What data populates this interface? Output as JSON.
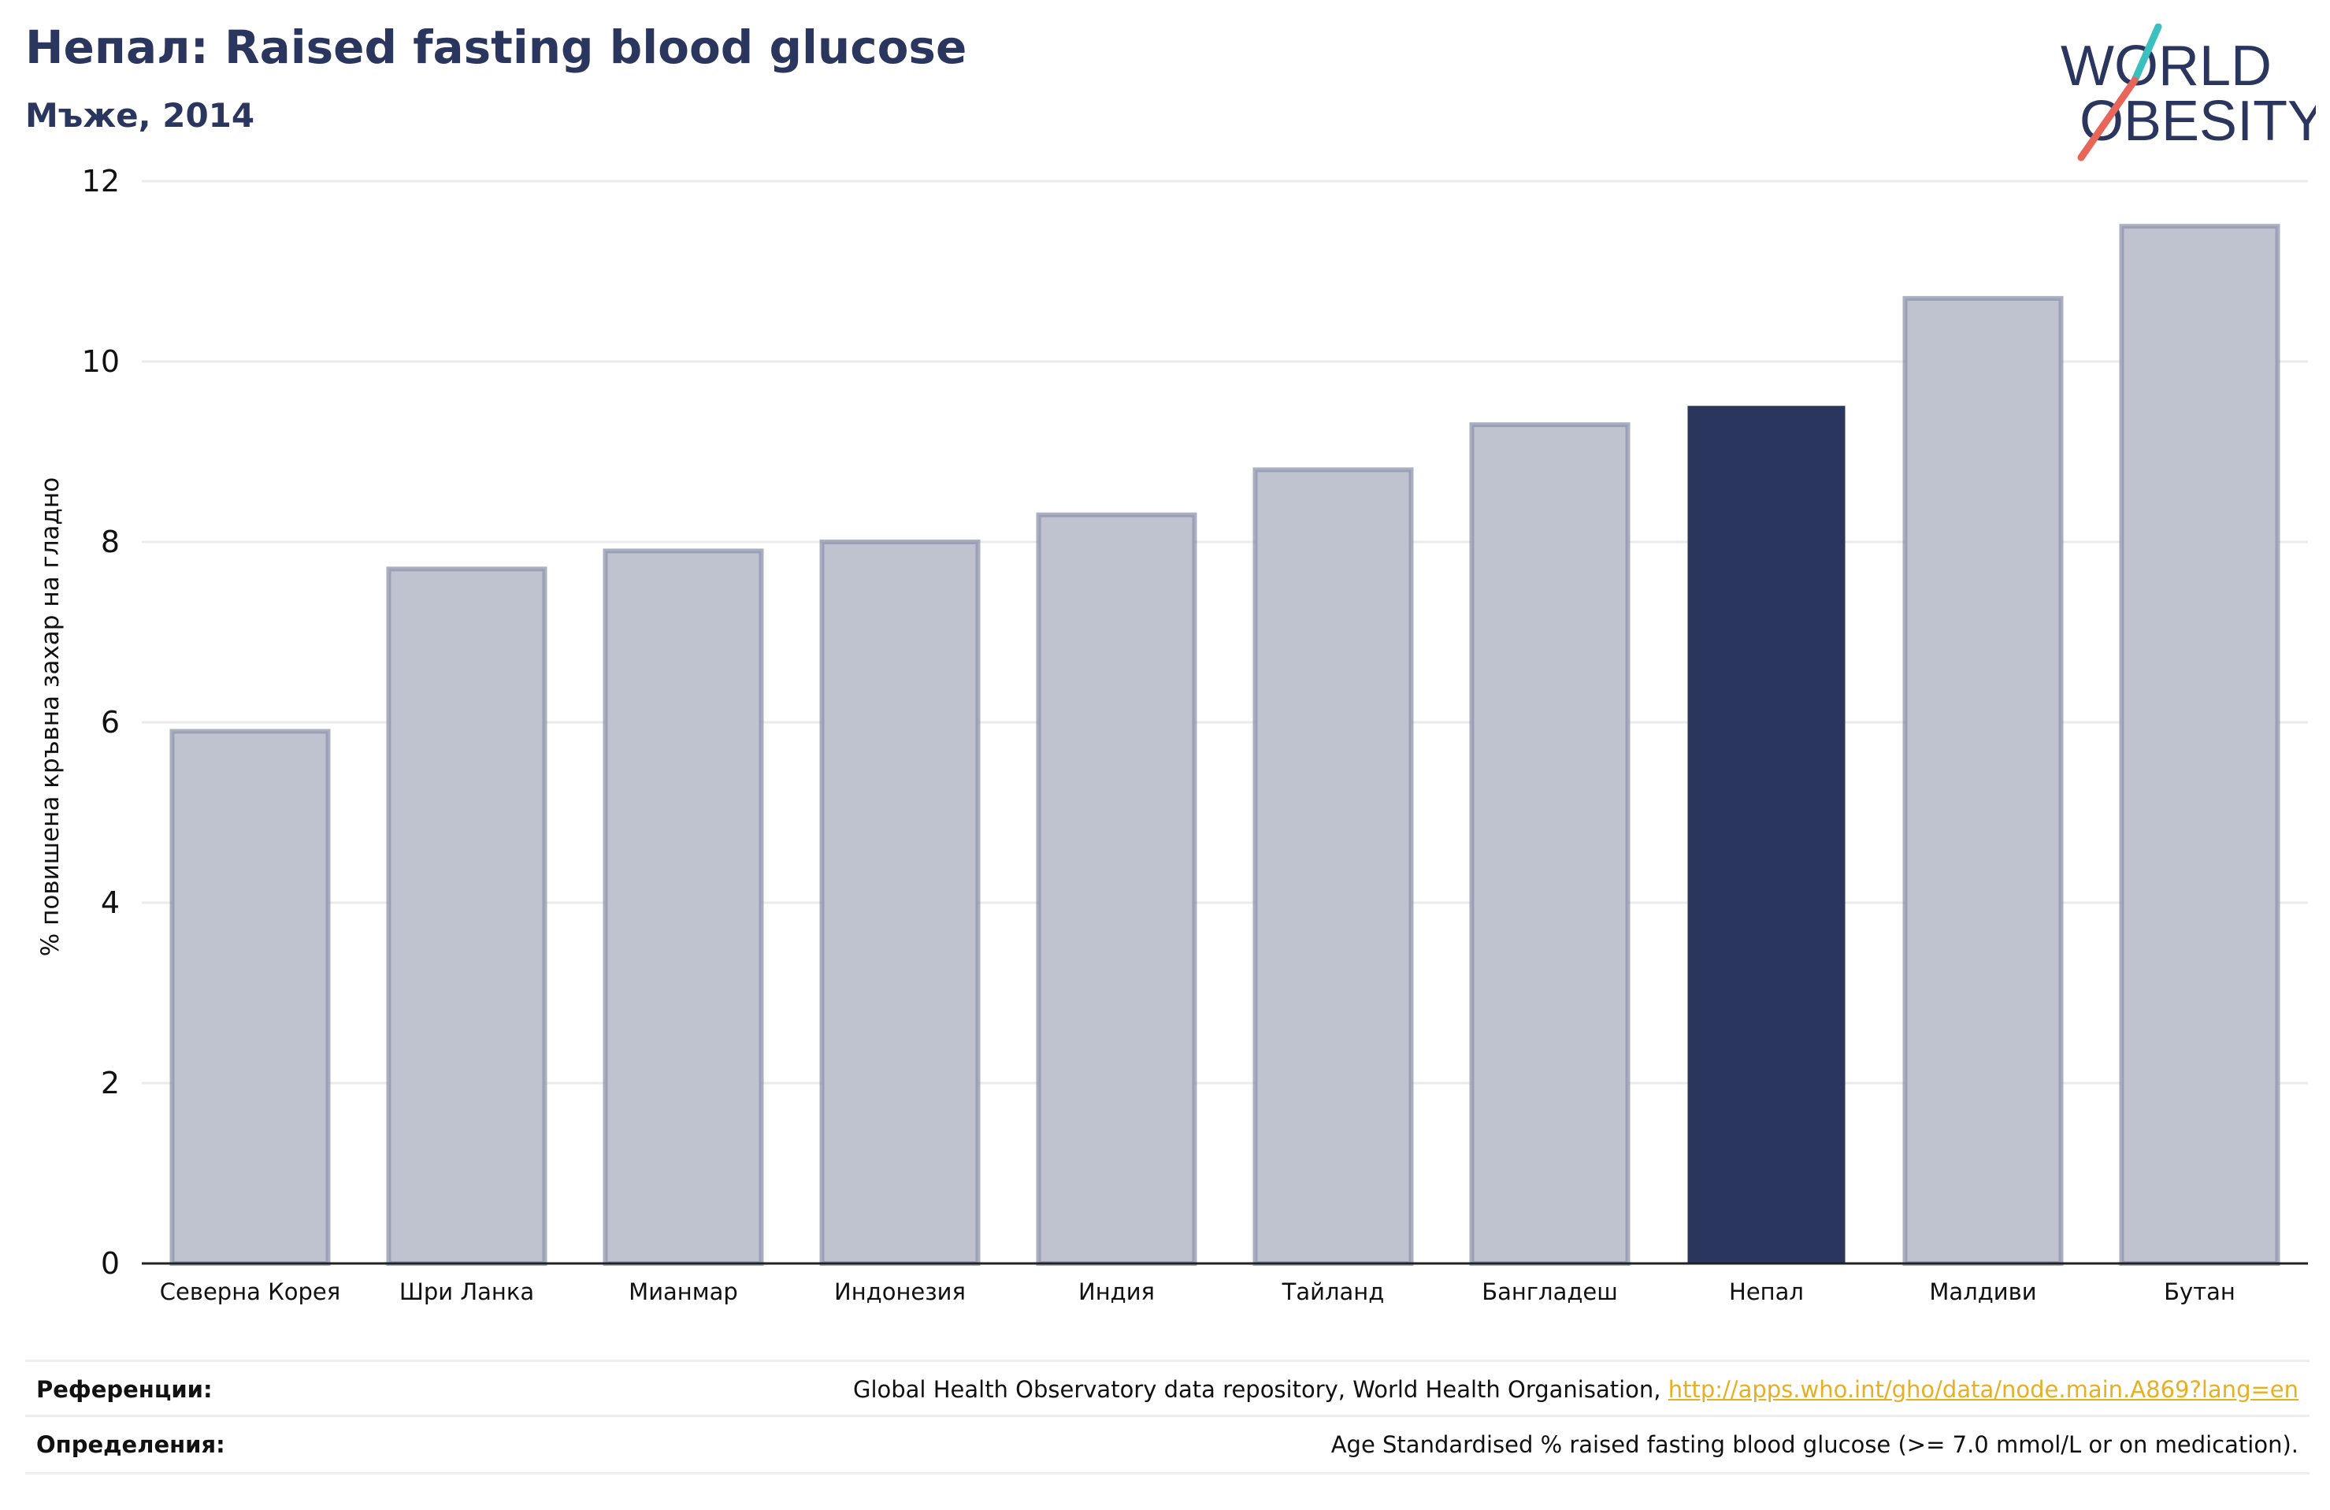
{
  "header": {
    "title": "Непал: Raised fasting blood glucose",
    "subtitle": "Мъже, 2014"
  },
  "logo": {
    "line1": "WORLD",
    "line2": "OBESITY",
    "brand_color": "#2b365f",
    "slash_colors": [
      "#3bbfbf",
      "#e8655a"
    ]
  },
  "colors": {
    "bar_default": "#bfc2cf",
    "bar_border": "#8f94ad",
    "bar_highlight": "#2b365f",
    "grid": "#ebebeb",
    "link": "#e6b022"
  },
  "chart_data": {
    "type": "bar",
    "title": "Непал: Raised fasting blood glucose",
    "subtitle": "Мъже, 2014",
    "ylabel": "% повишена кръвна захар на гладно",
    "xlabel": "",
    "ylim": [
      0,
      12
    ],
    "yticks": [
      0,
      2,
      4,
      6,
      8,
      10,
      12
    ],
    "grid": true,
    "categories": [
      "Северна Корея",
      "Шри Ланка",
      "Мианмар",
      "Индонезия",
      "Индия",
      "Тайланд",
      "Бангладеш",
      "Непал",
      "Малдиви",
      "Бутан"
    ],
    "values": [
      5.9,
      7.7,
      7.9,
      8.0,
      8.3,
      8.8,
      9.3,
      9.5,
      10.7,
      11.5
    ],
    "highlight": "Непал"
  },
  "footer": {
    "references_label": "Референции:",
    "references_text": "Global Health Observatory data repository, World Health Organisation, ",
    "references_link": "http://apps.who.int/gho/data/node.main.A869?lang=en",
    "definitions_label": "Определения:",
    "definitions_text": "Age Standardised % raised fasting blood glucose (>= 7.0 mmol/L or on medication)."
  }
}
